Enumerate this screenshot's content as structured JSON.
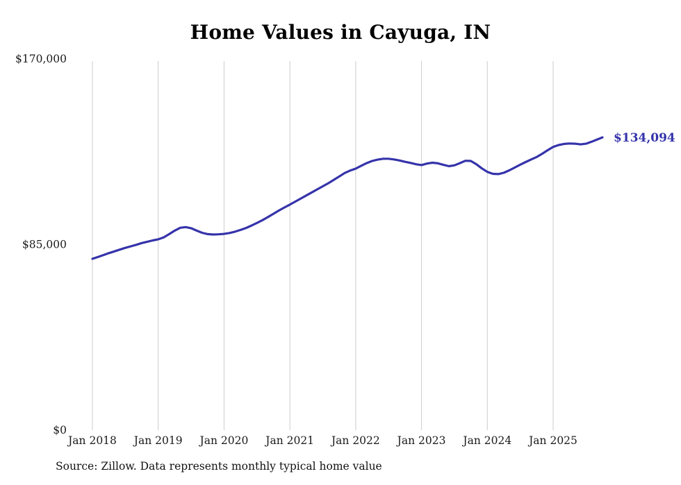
{
  "page": {
    "background": "#ffffff"
  },
  "chart_data": {
    "type": "line",
    "title": "Home Values in Cayuga, IN",
    "source_note": "Source: Zillow. Data represents monthly typical home value",
    "series_name": "Monthly typical home value",
    "start_month": "2018-01",
    "end_month": "2025-10",
    "ylim": [
      0,
      170000
    ],
    "grid": "vertical-only",
    "legend": "none",
    "line_color": "#3533aa",
    "grid_color": "#cccccc",
    "text_color": "#1a1a1a",
    "end_label": "$134,094",
    "y_ticks": [
      {
        "label": "$0",
        "value": 0
      },
      {
        "label": "$85,000",
        "value": 85000
      },
      {
        "label": "$170,000",
        "value": 170000
      }
    ],
    "x_ticks": [
      {
        "label": "Jan 2018",
        "month_index": 0
      },
      {
        "label": "Jan 2019",
        "month_index": 12
      },
      {
        "label": "Jan 2020",
        "month_index": 24
      },
      {
        "label": "Jan 2021",
        "month_index": 36
      },
      {
        "label": "Jan 2022",
        "month_index": 48
      },
      {
        "label": "Jan 2023",
        "month_index": 60
      },
      {
        "label": "Jan 2024",
        "month_index": 72
      },
      {
        "label": "Jan 2025",
        "month_index": 84
      }
    ],
    "values": [
      78500,
      79300,
      80200,
      81100,
      81900,
      82700,
      83500,
      84200,
      84900,
      85700,
      86300,
      86900,
      87400,
      88300,
      89800,
      91400,
      92700,
      93000,
      92500,
      91400,
      90400,
      89800,
      89600,
      89700,
      89900,
      90300,
      90900,
      91700,
      92600,
      93700,
      94900,
      96200,
      97600,
      99100,
      100600,
      102000,
      103300,
      104700,
      106100,
      107500,
      108900,
      110300,
      111700,
      113100,
      114600,
      116200,
      117800,
      118900,
      119800,
      121100,
      122300,
      123300,
      123900,
      124300,
      124300,
      124000,
      123500,
      122900,
      122400,
      121800,
      121400,
      122100,
      122500,
      122200,
      121500,
      120900,
      121300,
      122300,
      123400,
      123300,
      121800,
      119900,
      118300,
      117400,
      117300,
      117900,
      119000,
      120300,
      121600,
      122800,
      124000,
      125100,
      126600,
      128200,
      129700,
      130600,
      131100,
      131300,
      131200,
      130900,
      131200,
      132100,
      133100,
      134094
    ]
  }
}
